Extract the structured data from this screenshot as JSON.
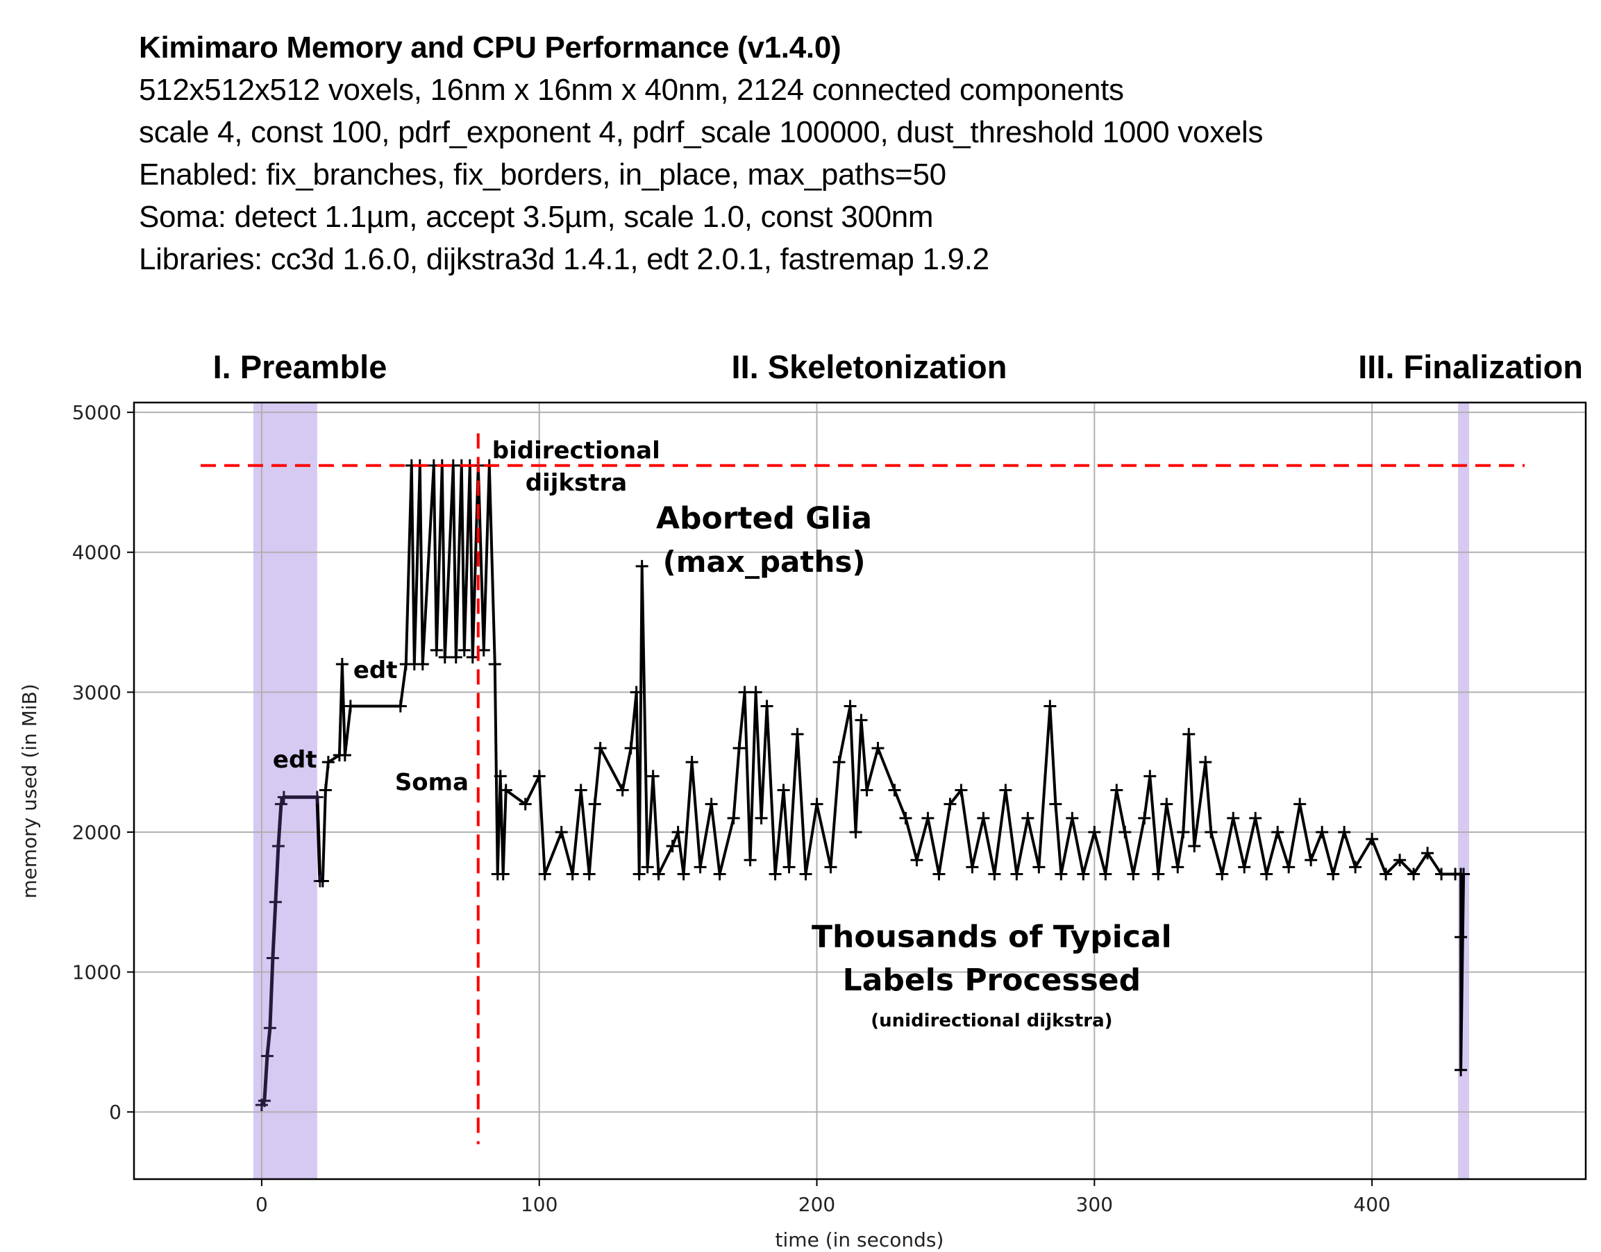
{
  "header": {
    "title": "Kimimaro Memory and CPU Performance (v1.4.0)",
    "lines": [
      "512x512x512 voxels, 16nm x 16nm x 40nm, 2124 connected components",
      "scale 4, const 100, pdrf_exponent 4, pdrf_scale 100000, dust_threshold 1000 voxels",
      "Enabled: fix_branches, fix_borders, in_place, max_paths=50",
      "Soma: detect 1.1µm, accept 3.5µm, scale 1.0, const 300nm",
      "Libraries: cc3d 1.6.0, dijkstra3d 1.4.1, edt 2.0.1, fastremap 1.9.2"
    ]
  },
  "chart_data": {
    "type": "line",
    "title": "Kimimaro Memory and CPU Performance (v1.4.0)",
    "xlabel": "time (in seconds)",
    "ylabel": "memory used (in MiB)",
    "xlim": [
      -46,
      477
    ],
    "ylim": [
      -480,
      5070
    ],
    "xticks": [
      0,
      100,
      200,
      300,
      400
    ],
    "yticks": [
      0,
      1000,
      2000,
      3000,
      4000,
      5000
    ],
    "grid": true,
    "marker": "+",
    "colors": {
      "line": "#000000",
      "early_line": "#241a3a",
      "span": "#d6c9f2",
      "limit": "#ff0000"
    },
    "sections": [
      "I. Preamble",
      "II. Skeletonization",
      "III. Finalization"
    ],
    "spans": [
      {
        "x0": -3,
        "x1": 20
      },
      {
        "x0": 431,
        "x1": 435
      }
    ],
    "hline": {
      "y": 4620,
      "x0": -22,
      "x1": 455
    },
    "vline": {
      "x": 78,
      "y0": -230,
      "y1": 4850
    },
    "annotations": [
      {
        "text": "bidirectional",
        "x": 83,
        "y": 4670
      },
      {
        "text": "dijkstra",
        "x": 95,
        "y": 4440
      },
      {
        "text": "Aborted Glia",
        "x": 181,
        "y": 4170
      },
      {
        "text": "(max_paths)",
        "x": 181,
        "y": 3860
      },
      {
        "text": "edt",
        "x": 33,
        "y": 3100
      },
      {
        "text": "edt",
        "x": 4,
        "y": 2460
      },
      {
        "text": "Soma",
        "x": 48,
        "y": 2300
      },
      {
        "text": "Thousands of Typical",
        "x": 263,
        "y": 1180
      },
      {
        "text": "Labels Processed",
        "x": 263,
        "y": 870
      },
      {
        "text": "(unidirectional dijkstra)",
        "x": 263,
        "y": 610
      }
    ],
    "series": [
      {
        "name": "memory",
        "x": [
          0,
          1,
          2,
          3,
          4,
          5,
          6,
          7,
          8,
          20,
          21,
          22,
          23,
          24,
          28,
          29,
          30,
          32,
          50,
          52,
          54,
          55,
          57,
          58,
          62,
          63,
          65,
          66,
          69,
          70,
          72,
          73,
          75,
          76,
          78,
          80,
          82,
          84,
          85,
          86,
          87,
          88,
          95,
          100,
          102,
          108,
          112,
          115,
          118,
          120,
          122,
          130,
          133,
          135,
          136,
          137,
          139,
          141,
          143,
          148,
          150,
          152,
          155,
          158,
          162,
          165,
          170,
          172,
          174,
          176,
          178,
          180,
          182,
          185,
          188,
          190,
          193,
          196,
          200,
          205,
          208,
          212,
          214,
          216,
          218,
          222,
          228,
          232,
          236,
          240,
          244,
          248,
          252,
          256,
          260,
          264,
          268,
          272,
          276,
          280,
          284,
          286,
          288,
          292,
          296,
          300,
          304,
          308,
          311,
          314,
          318,
          320,
          323,
          326,
          330,
          332,
          334,
          336,
          340,
          342,
          346,
          350,
          354,
          358,
          362,
          366,
          370,
          374,
          378,
          382,
          386,
          390,
          394,
          400,
          405,
          410,
          415,
          420,
          425,
          430,
          432,
          432,
          432,
          433
        ],
        "y": [
          50,
          80,
          400,
          600,
          1100,
          1500,
          1900,
          2200,
          2250,
          2250,
          1650,
          1650,
          2300,
          2500,
          2550,
          3200,
          2550,
          2900,
          2900,
          3200,
          4620,
          3200,
          4620,
          3200,
          4620,
          3300,
          4620,
          3250,
          4620,
          3250,
          4620,
          3300,
          4620,
          3250,
          4620,
          3300,
          4620,
          3200,
          1700,
          2400,
          1700,
          2300,
          2200,
          2400,
          1700,
          2000,
          1700,
          2300,
          1700,
          2200,
          2600,
          2300,
          2600,
          3000,
          1700,
          3900,
          1750,
          2400,
          1700,
          1900,
          2000,
          1700,
          2500,
          1750,
          2200,
          1700,
          2100,
          2600,
          3000,
          1800,
          3000,
          2100,
          2900,
          1700,
          2300,
          1750,
          2700,
          1700,
          2200,
          1750,
          2500,
          2900,
          2000,
          2800,
          2300,
          2600,
          2300,
          2100,
          1800,
          2100,
          1700,
          2200,
          2300,
          1750,
          2100,
          1700,
          2300,
          1700,
          2100,
          1750,
          2900,
          2200,
          1700,
          2100,
          1700,
          2000,
          1700,
          2300,
          2000,
          1700,
          2100,
          2400,
          1700,
          2200,
          1750,
          2000,
          2700,
          1900,
          2500,
          2000,
          1700,
          2100,
          1750,
          2100,
          1700,
          2000,
          1750,
          2200,
          1800,
          2000,
          1700,
          2000,
          1750,
          1950,
          1700,
          1800,
          1700,
          1850,
          1700,
          1700,
          1700,
          1250,
          300,
          1700
        ]
      }
    ]
  }
}
